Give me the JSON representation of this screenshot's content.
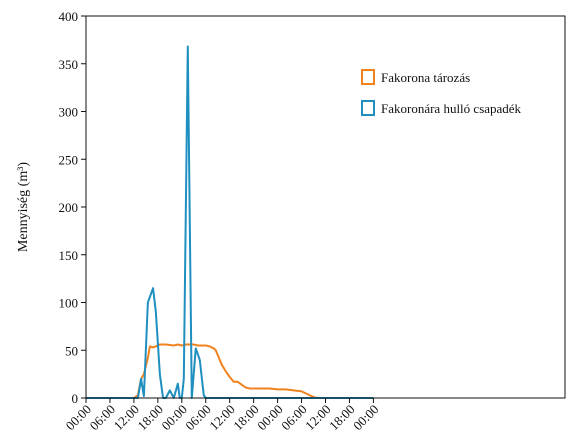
{
  "chart_data": {
    "type": "line",
    "title": "",
    "xlabel": "",
    "ylabel": "Mennyiség (m³)",
    "ylim": [
      0,
      400
    ],
    "yticks": [
      0,
      50,
      100,
      150,
      200,
      250,
      300,
      350,
      400
    ],
    "xlim": [
      0,
      120
    ],
    "xticks": [
      {
        "x": 0,
        "label": "00:00"
      },
      {
        "x": 6,
        "label": "06:00"
      },
      {
        "x": 12,
        "label": "12:00"
      },
      {
        "x": 18,
        "label": "18:00"
      },
      {
        "x": 24,
        "label": "00:00"
      },
      {
        "x": 30,
        "label": "06:00"
      },
      {
        "x": 36,
        "label": "12:00"
      },
      {
        "x": 42,
        "label": "18:00"
      },
      {
        "x": 48,
        "label": "00:00"
      },
      {
        "x": 54,
        "label": "06:00"
      },
      {
        "x": 60,
        "label": "12:00"
      },
      {
        "x": 66,
        "label": "18:00"
      },
      {
        "x": 72,
        "label": "00:00"
      }
    ],
    "legend_position": "top-right",
    "grid": false,
    "series": [
      {
        "name": "Fakorona tározás",
        "color": "#f0821e",
        "points": [
          [
            0,
            0
          ],
          [
            12,
            0
          ],
          [
            13,
            3
          ],
          [
            13.8,
            20
          ],
          [
            14.5,
            25
          ],
          [
            15.5,
            42
          ],
          [
            16,
            54
          ],
          [
            16.8,
            53
          ],
          [
            17.5,
            54
          ],
          [
            18.5,
            56
          ],
          [
            20,
            56
          ],
          [
            22,
            55
          ],
          [
            23,
            56
          ],
          [
            24,
            55
          ],
          [
            25,
            56
          ],
          [
            27,
            56
          ],
          [
            28,
            55
          ],
          [
            30,
            55
          ],
          [
            31,
            54
          ],
          [
            32,
            52
          ],
          [
            32.5,
            50
          ],
          [
            33,
            45
          ],
          [
            34,
            35
          ],
          [
            35,
            28
          ],
          [
            36,
            22
          ],
          [
            37,
            17
          ],
          [
            38,
            17
          ],
          [
            39,
            14
          ],
          [
            40,
            11
          ],
          [
            41,
            10
          ],
          [
            42,
            10
          ],
          [
            44,
            10
          ],
          [
            46,
            10
          ],
          [
            48,
            9
          ],
          [
            50,
            9
          ],
          [
            52,
            8
          ],
          [
            54,
            7
          ],
          [
            55,
            5
          ],
          [
            56,
            3
          ],
          [
            57,
            1
          ],
          [
            58,
            0
          ],
          [
            72,
            0
          ]
        ]
      },
      {
        "name": "Fakoronára hulló csapadék",
        "color": "#1f8fc0",
        "points": [
          [
            0,
            0
          ],
          [
            12,
            0
          ],
          [
            13,
            0
          ],
          [
            13.8,
            20
          ],
          [
            14.5,
            2
          ],
          [
            15.5,
            100
          ],
          [
            16.8,
            115
          ],
          [
            17.5,
            90
          ],
          [
            18.5,
            25
          ],
          [
            19.3,
            0
          ],
          [
            20,
            0
          ],
          [
            21,
            8
          ],
          [
            22,
            0
          ],
          [
            23,
            15
          ],
          [
            23.5,
            0
          ],
          [
            24,
            0
          ],
          [
            24.5,
            20
          ],
          [
            25.5,
            368
          ],
          [
            26.5,
            0
          ],
          [
            27.5,
            52
          ],
          [
            28.5,
            40
          ],
          [
            29.5,
            3
          ],
          [
            30,
            0
          ],
          [
            31,
            0
          ],
          [
            72,
            0
          ]
        ]
      }
    ]
  }
}
